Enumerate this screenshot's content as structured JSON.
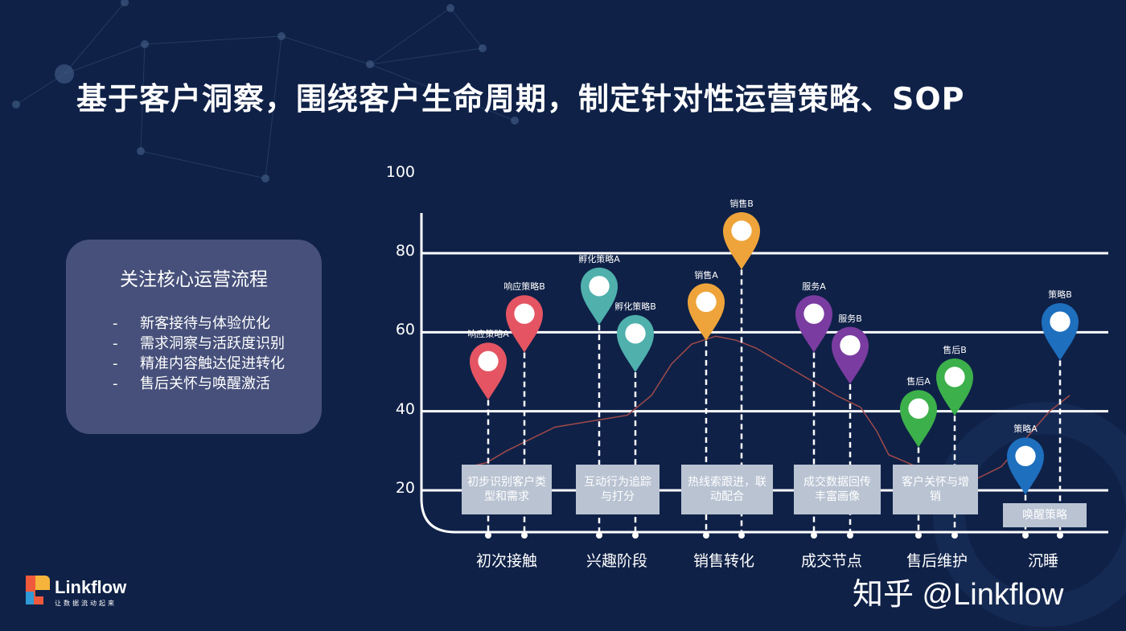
{
  "title": "基于客户洞察，围绕客户生命周期，制定针对性运营策略、SOP",
  "focus": {
    "title": "关注核心运营流程",
    "items": [
      "新客接待与体验优化",
      "需求洞察与活跃度识别",
      "精准内容触达促进转化",
      "售后关怀与唤醒激活"
    ],
    "bullet": "-"
  },
  "chart_data": {
    "type": "line",
    "y_ticks": [
      "100",
      "80",
      "60",
      "40",
      "20"
    ],
    "ylim": [
      20,
      100
    ],
    "curve": [
      [
        583,
        26
      ],
      [
        605,
        27
      ],
      [
        630,
        30
      ],
      [
        660,
        33
      ],
      [
        690,
        36
      ],
      [
        720,
        37
      ],
      [
        750,
        38
      ],
      [
        780,
        39
      ],
      [
        810,
        44
      ],
      [
        835,
        52
      ],
      [
        860,
        57
      ],
      [
        890,
        59
      ],
      [
        915,
        58
      ],
      [
        940,
        56
      ],
      [
        965,
        53
      ],
      [
        990,
        50
      ],
      [
        1015,
        47
      ],
      [
        1040,
        44
      ],
      [
        1070,
        41
      ],
      [
        1090,
        35
      ],
      [
        1105,
        29
      ],
      [
        1140,
        26
      ],
      [
        1160,
        24
      ],
      [
        1190,
        23
      ],
      [
        1215,
        23
      ],
      [
        1245,
        26
      ],
      [
        1275,
        33
      ],
      [
        1305,
        40
      ],
      [
        1330,
        44
      ]
    ],
    "stages": [
      {
        "label": "初次接触",
        "box": "初步识别客户类型和需求",
        "pins": [
          {
            "label": "响应策略A",
            "value": 51,
            "color": "#e45462"
          },
          {
            "label": "响应策略B",
            "value": 63,
            "color": "#e45462"
          }
        ]
      },
      {
        "label": "兴趣阶段",
        "box": "互动行为追踪与打分",
        "pins": [
          {
            "label": "孵化策略A",
            "value": 70,
            "color": "#4fb0ac"
          },
          {
            "label": "孵化策略B",
            "value": 58,
            "color": "#4fb0ac"
          }
        ]
      },
      {
        "label": "销售转化",
        "box": "热线索跟进，联动配合",
        "pins": [
          {
            "label": "销售A",
            "value": 66,
            "color": "#eea43a"
          },
          {
            "label": "销售B",
            "value": 84,
            "color": "#eea43a"
          }
        ]
      },
      {
        "label": "成交节点",
        "box": "成交数据回传丰富画像",
        "pins": [
          {
            "label": "服务A",
            "value": 63,
            "color": "#7a3ca0"
          },
          {
            "label": "服务B",
            "value": 55,
            "color": "#7a3ca0"
          }
        ]
      },
      {
        "label": "售后维护",
        "box": "客户关怀与增销",
        "pins": [
          {
            "label": "售后A",
            "value": 39,
            "color": "#3cb04a"
          },
          {
            "label": "售后B",
            "value": 47,
            "color": "#3cb04a"
          }
        ]
      },
      {
        "label": "沉睡",
        "box": "唤醒策略",
        "pins": [
          {
            "label": "策略A",
            "value": 27,
            "color": "#1e6fbe"
          },
          {
            "label": "策略B",
            "value": 61,
            "color": "#1e6fbe"
          }
        ]
      }
    ]
  },
  "brand": {
    "name": "Linkflow",
    "slogan": "让数据流动起来"
  },
  "watermark": "知乎 @Linkflow"
}
